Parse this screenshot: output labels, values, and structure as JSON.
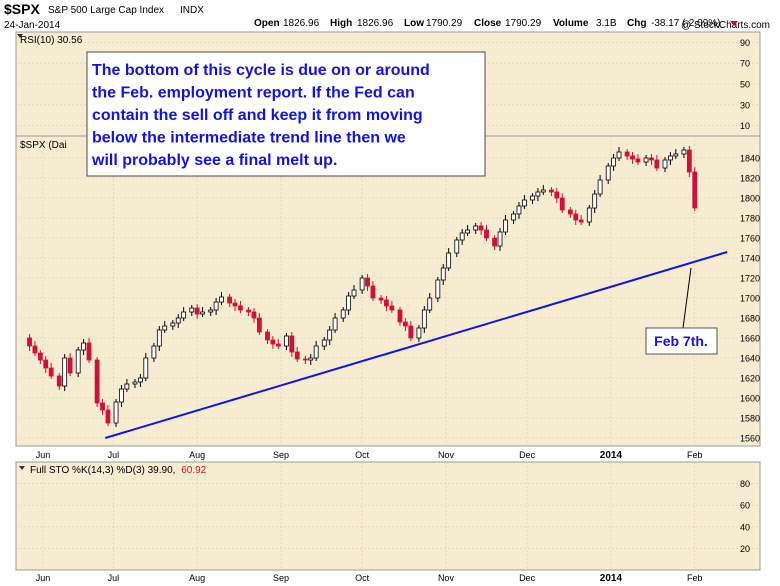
{
  "header": {
    "symbol": "$SPX",
    "name": "S&P 500 Large Cap Index",
    "exchange": "INDX",
    "date": "24-Jan-2014",
    "copyright": "@ StockCharts.com",
    "quote": {
      "open_label": "Open",
      "open": "1826.96",
      "high_label": "High",
      "high": "1826.96",
      "low_label": "Low",
      "low": "1790.29",
      "close_label": "Close",
      "close": "1790.29",
      "volume_label": "Volume",
      "volume": "3.1B",
      "chg_label": "Chg",
      "chg": "-38.17 (-2.09%)"
    }
  },
  "rsi_panel": {
    "label": "RSI(10) 30.56",
    "ticks": [
      90,
      70,
      50,
      30,
      10
    ]
  },
  "price_panel": {
    "label": "$SPX (Dai"
  },
  "sto_panel": {
    "label_main": "Full STO %K(14,3) %D(3) 39.90,",
    "label_red": "60.92",
    "ticks": [
      80,
      60,
      40,
      20
    ]
  },
  "annotation": {
    "text_lines": [
      "The bottom of this cycle is due on or around",
      "the Feb. employment report. If the Fed can",
      "contain the sell off and keep it from moving",
      "below the intermediate trend line then we",
      "will probably see a final melt up."
    ]
  },
  "callout": {
    "text": "Feb 7th."
  },
  "colors": {
    "panel_bg": "#f6ecd2",
    "up_candle": "#000000",
    "down_candle": "#d0103a",
    "trendline": "#1414e0",
    "annotation_text": "#1414d8",
    "grid": "#d9c9a3"
  },
  "chart_data": {
    "type": "candlestick",
    "y_axis": {
      "ticks": [
        1560,
        1580,
        1600,
        1620,
        1640,
        1660,
        1680,
        1700,
        1720,
        1740,
        1760,
        1780,
        1800,
        1820,
        1840
      ],
      "ylim": [
        1552,
        1862
      ]
    },
    "x_axis": {
      "labels": [
        "Jun",
        "Jul",
        "Aug",
        "Sep",
        "Oct",
        "Nov",
        "Dec",
        "2014",
        "Feb"
      ],
      "label_days": [
        0,
        26,
        57,
        88,
        118,
        149,
        179,
        210,
        241
      ],
      "day_range": [
        -10,
        257
      ]
    },
    "closes": [
      [
        -7,
        1660
      ],
      [
        -5,
        1652
      ],
      [
        -3,
        1645
      ],
      [
        -1,
        1638
      ],
      [
        1,
        1630
      ],
      [
        3,
        1622
      ],
      [
        6,
        1612
      ],
      [
        8,
        1640
      ],
      [
        10,
        1625
      ],
      [
        13,
        1648
      ],
      [
        15,
        1655
      ],
      [
        17,
        1638
      ],
      [
        20,
        1595
      ],
      [
        22,
        1588
      ],
      [
        24,
        1575
      ],
      [
        27,
        1596
      ],
      [
        29,
        1609
      ],
      [
        31,
        1614
      ],
      [
        34,
        1616
      ],
      [
        36,
        1620
      ],
      [
        38,
        1640
      ],
      [
        41,
        1652
      ],
      [
        43,
        1668
      ],
      [
        45,
        1672
      ],
      [
        48,
        1675
      ],
      [
        50,
        1680
      ],
      [
        52,
        1686
      ],
      [
        55,
        1690
      ],
      [
        57,
        1684
      ],
      [
        59,
        1686
      ],
      [
        62,
        1688
      ],
      [
        64,
        1696
      ],
      [
        66,
        1701
      ],
      [
        69,
        1695
      ],
      [
        71,
        1692
      ],
      [
        73,
        1688
      ],
      [
        76,
        1686
      ],
      [
        78,
        1680
      ],
      [
        80,
        1666
      ],
      [
        83,
        1658
      ],
      [
        85,
        1654
      ],
      [
        87,
        1652
      ],
      [
        90,
        1662
      ],
      [
        92,
        1646
      ],
      [
        94,
        1639
      ],
      [
        97,
        1638
      ],
      [
        99,
        1640
      ],
      [
        101,
        1652
      ],
      [
        104,
        1658
      ],
      [
        106,
        1668
      ],
      [
        108,
        1680
      ],
      [
        111,
        1688
      ],
      [
        113,
        1702
      ],
      [
        115,
        1708
      ],
      [
        118,
        1720
      ],
      [
        120,
        1712
      ],
      [
        122,
        1700
      ],
      [
        125,
        1698
      ],
      [
        127,
        1692
      ],
      [
        129,
        1688
      ],
      [
        132,
        1676
      ],
      [
        134,
        1672
      ],
      [
        136,
        1660
      ],
      [
        139,
        1670
      ],
      [
        141,
        1688
      ],
      [
        143,
        1700
      ],
      [
        146,
        1718
      ],
      [
        148,
        1730
      ],
      [
        150,
        1745
      ],
      [
        153,
        1758
      ],
      [
        155,
        1765
      ],
      [
        157,
        1768
      ],
      [
        160,
        1772
      ],
      [
        162,
        1768
      ],
      [
        164,
        1760
      ],
      [
        167,
        1752
      ],
      [
        169,
        1766
      ],
      [
        171,
        1778
      ],
      [
        174,
        1784
      ],
      [
        176,
        1792
      ],
      [
        178,
        1798
      ],
      [
        181,
        1802
      ],
      [
        183,
        1806
      ],
      [
        185,
        1808
      ],
      [
        188,
        1806
      ],
      [
        190,
        1800
      ],
      [
        192,
        1788
      ],
      [
        195,
        1784
      ],
      [
        197,
        1778
      ],
      [
        199,
        1776
      ],
      [
        202,
        1790
      ],
      [
        204,
        1804
      ],
      [
        206,
        1818
      ],
      [
        209,
        1832
      ],
      [
        211,
        1840
      ],
      [
        213,
        1846
      ],
      [
        216,
        1842
      ],
      [
        218,
        1839
      ],
      [
        220,
        1836
      ],
      [
        223,
        1840
      ],
      [
        225,
        1838
      ],
      [
        227,
        1830
      ],
      [
        230,
        1838
      ],
      [
        232,
        1842
      ],
      [
        234,
        1844
      ],
      [
        237,
        1848
      ],
      [
        239,
        1826
      ],
      [
        241,
        1790
      ]
    ],
    "trendline": {
      "start": {
        "day": 23,
        "value": 1560
      },
      "end": {
        "day": 253,
        "value": 1746
      }
    }
  }
}
